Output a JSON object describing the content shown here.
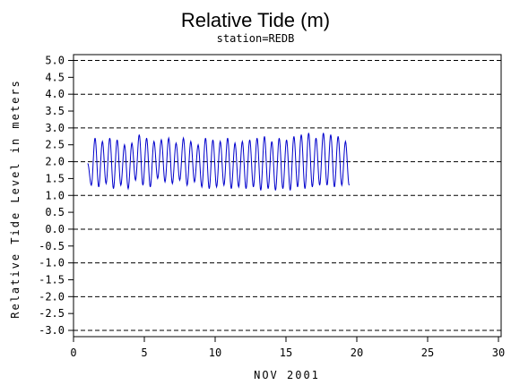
{
  "chart_data": {
    "type": "line",
    "title": "Relative Tide (m)",
    "subtitle": "station=REDB",
    "xlabel": "NOV 2001",
    "ylabel": "Relative Tide Level in meters",
    "xlim": [
      0,
      30
    ],
    "ylim": [
      -3.0,
      5.0
    ],
    "xticks": [
      0,
      5,
      10,
      15,
      20,
      25,
      30
    ],
    "xtick_labels": [
      "0",
      "5",
      "10",
      "15",
      "20",
      "25",
      "30"
    ],
    "yticks": [
      5.0,
      4.5,
      4.0,
      3.5,
      3.0,
      2.5,
      2.0,
      1.5,
      1.0,
      0.5,
      0.0,
      -0.5,
      -1.0,
      -1.5,
      -2.0,
      -2.5,
      -3.0
    ],
    "ytick_labels": [
      "5.0",
      "4.5",
      "4.0",
      "3.5",
      "3.0",
      "2.5",
      "2.0",
      "1.5",
      "1.0",
      "0.5",
      "0.0",
      "-0.5",
      "-1.0",
      "-1.5",
      "-2.0",
      "-2.5",
      "-3.0"
    ],
    "gridlines_y": [
      5.0,
      4.0,
      3.0,
      2.0,
      1.0,
      0.0,
      -1.0,
      -2.0,
      -3.0
    ],
    "grid_style": "dashed horizontal",
    "series_color": "#0000cc",
    "series": [
      {
        "x": [
          1.0,
          1.26,
          1.52,
          1.78,
          2.04,
          2.3,
          2.56,
          2.82,
          3.08,
          3.34,
          3.6,
          3.86,
          4.12,
          4.38,
          4.64,
          4.9,
          5.16,
          5.42,
          5.68,
          5.94,
          6.2,
          6.46,
          6.72,
          6.98,
          7.24,
          7.5,
          7.76,
          8.02,
          8.28,
          8.54,
          8.8,
          9.06,
          9.32,
          9.58,
          9.84,
          10.1,
          10.36,
          10.62,
          10.88,
          11.14,
          11.4,
          11.66,
          11.92,
          12.18,
          12.44,
          12.7,
          12.96,
          13.22,
          13.48,
          13.74,
          14.0,
          14.26,
          14.52,
          14.78,
          15.04,
          15.3,
          15.56,
          15.82,
          16.08,
          16.34,
          16.6,
          16.86,
          17.12,
          17.38,
          17.64,
          17.9,
          18.16,
          18.42,
          18.68,
          18.94,
          19.2,
          19.46
        ],
        "values": [
          1.95,
          1.3,
          2.7,
          1.25,
          2.6,
          1.35,
          2.7,
          1.2,
          2.65,
          1.3,
          2.5,
          1.2,
          2.55,
          1.45,
          2.8,
          1.3,
          2.7,
          1.25,
          2.6,
          1.5,
          2.65,
          1.4,
          2.7,
          1.35,
          2.55,
          1.45,
          2.7,
          1.3,
          2.6,
          1.4,
          2.5,
          1.25,
          2.7,
          1.2,
          2.65,
          1.25,
          2.6,
          1.3,
          2.7,
          1.2,
          2.55,
          1.25,
          2.6,
          1.2,
          2.65,
          1.25,
          2.7,
          1.15,
          2.75,
          1.2,
          2.6,
          1.15,
          2.7,
          1.2,
          2.65,
          1.15,
          2.75,
          1.25,
          2.8,
          1.2,
          2.85,
          1.25,
          2.7,
          1.3,
          2.85,
          1.3,
          2.8,
          1.25,
          2.75,
          1.3,
          2.6,
          1.3
        ]
      }
    ]
  }
}
